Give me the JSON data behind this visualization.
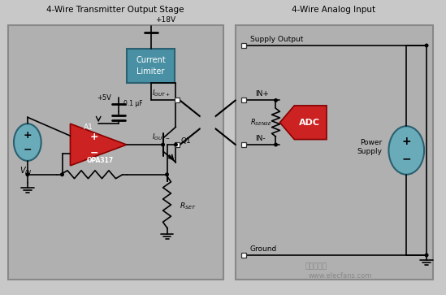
{
  "bg_color": "#c8c8c8",
  "left_panel_color": "#b0b0b0",
  "right_panel_color": "#b0b0b0",
  "title_left": "4-Wire Transmitter Output Stage",
  "title_right": "4-Wire Analog Input",
  "current_limiter_color": "#4a90a4",
  "op_amp_color": "#cc2222",
  "adc_color": "#cc2222",
  "power_supply_ellipse_color": "#6aabba",
  "voltage_source_color": "#6aabba",
  "wire_color": "#000000",
  "connector_color": "#ffffff",
  "font_color": "#000000",
  "watermark": "www.elecfans.com"
}
